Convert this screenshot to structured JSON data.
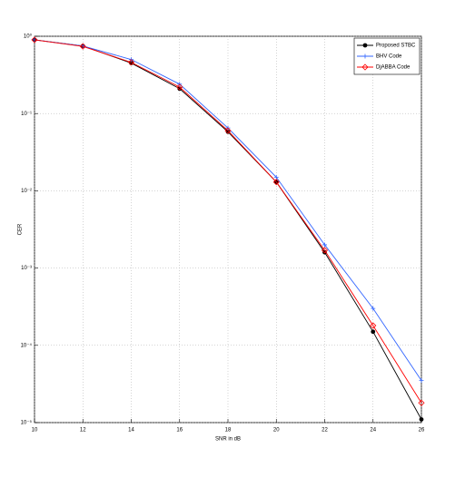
{
  "chart_data": {
    "type": "line",
    "x_label": "SNR in dB",
    "y_label": "CER",
    "x": [
      10,
      12,
      14,
      16,
      18,
      20,
      22,
      24,
      26
    ],
    "series": [
      {
        "name": "Proposed STBC",
        "color": "#000000",
        "marker": "dot",
        "values": [
          0.9,
          0.75,
          0.45,
          0.21,
          0.058,
          0.013,
          0.0016,
          0.00015,
          1.1e-05
        ]
      },
      {
        "name": "BHV Code",
        "color": "#3366ff",
        "marker": "plus",
        "values": [
          0.9,
          0.75,
          0.5,
          0.24,
          0.065,
          0.015,
          0.002,
          0.0003,
          3.5e-05
        ]
      },
      {
        "name": "DjABBA Code",
        "color": "#ff0000",
        "marker": "diamond",
        "values": [
          0.9,
          0.74,
          0.46,
          0.22,
          0.06,
          0.013,
          0.0017,
          0.00018,
          1.8e-05
        ]
      }
    ],
    "xlim": [
      10,
      26
    ],
    "xticks": [
      10,
      12,
      14,
      16,
      18,
      20,
      22,
      24,
      26
    ],
    "ylim": [
      1e-05,
      1
    ],
    "log_y": true,
    "yticks": [
      {
        "value": 1e-05,
        "label": "10⁻⁵"
      },
      {
        "value": 0.0001,
        "label": "10⁻⁴"
      },
      {
        "value": 0.001,
        "label": "10⁻³"
      },
      {
        "value": 0.01,
        "label": "10⁻²"
      },
      {
        "value": 0.1,
        "label": "10⁻¹"
      },
      {
        "value": 1,
        "label": "10⁰"
      }
    ],
    "grid": true,
    "legend": "top-right"
  }
}
